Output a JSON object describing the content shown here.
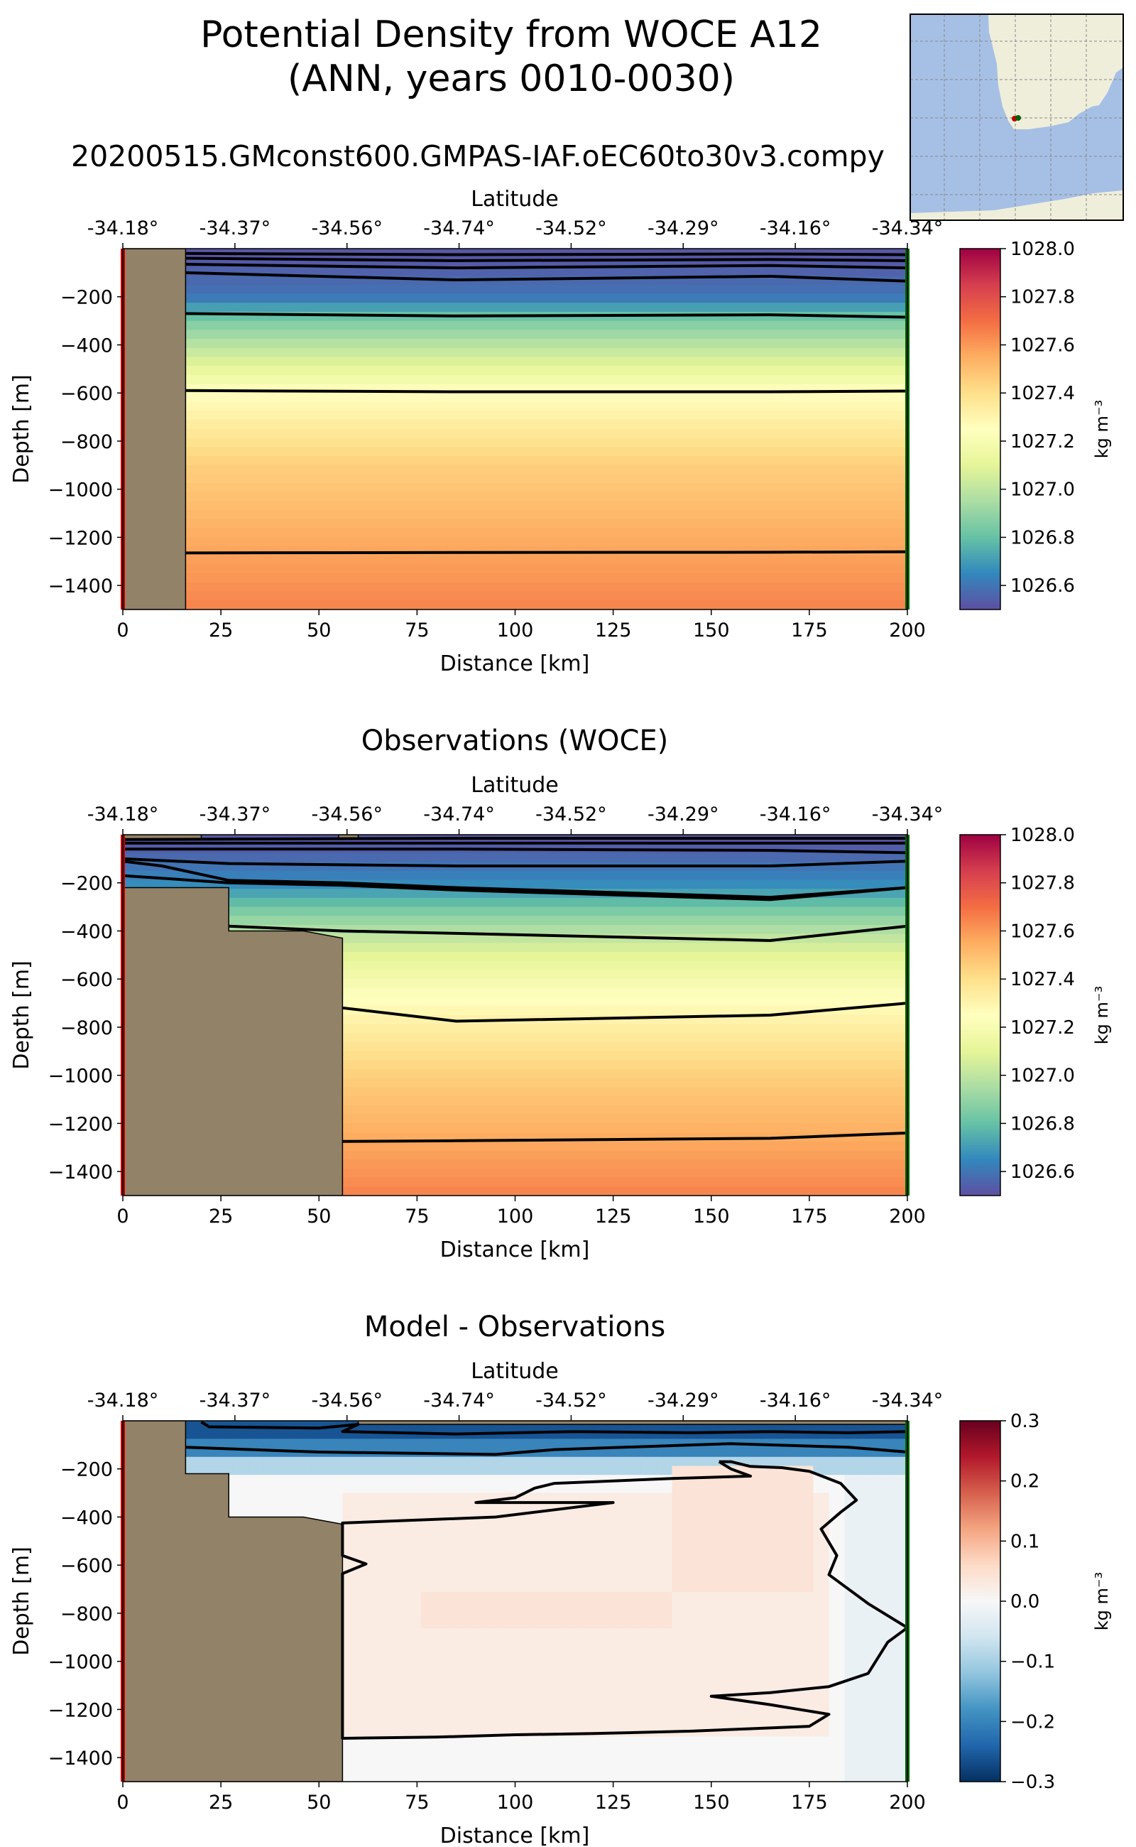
{
  "figure": {
    "title_line1": "Potential Density from WOCE A12",
    "title_line2": "(ANN, years 0010-0030)",
    "run_name": "20200515.GMconst600.GMPAS-IAF.oEC60to30v3.compy",
    "panel2_title": "Observations (WOCE)",
    "panel3_title": "Model - Observations"
  },
  "colors": {
    "land": "#928267",
    "map_ocean": "#a6c0e5",
    "map_land": "#efeedb",
    "start_marker": "#c00000",
    "end_marker": "#006400",
    "contour": "#000000"
  },
  "chart_data": [
    {
      "type": "heatmap",
      "title": "",
      "xlabel": "Distance [km]",
      "ylabel": "Depth [m]",
      "top_xlabel": "Latitude",
      "xlim": [
        0,
        200
      ],
      "ylim": [
        -1500,
        0
      ],
      "xticks": [
        0,
        25,
        50,
        75,
        100,
        125,
        150,
        175,
        200
      ],
      "yticks": [
        -200,
        -400,
        -600,
        -800,
        -1000,
        -1200,
        -1400
      ],
      "lat_ticks": [
        "-34.18°",
        "-34.37°",
        "-34.56°",
        "-34.74°",
        "-34.52°",
        "-34.29°",
        "-34.16°",
        "-34.34°"
      ],
      "colorbar": {
        "label": "kg m⁻³",
        "vmin": 1026.5,
        "vmax": 1028.0,
        "ticks": [
          1026.6,
          1026.8,
          1027.0,
          1027.2,
          1027.4,
          1027.6,
          1027.8,
          1028.0
        ],
        "colormap": "Spectral_r"
      },
      "profile": {
        "depth": [
          -30,
          -200,
          -300,
          -450,
          -600,
          -900,
          -1200,
          -1500
        ],
        "value": [
          1026.52,
          1026.6,
          1026.85,
          1027.05,
          1027.25,
          1027.45,
          1027.55,
          1027.65
        ]
      },
      "land": [
        [
          [
            0,
            0
          ],
          [
            16,
            0
          ],
          [
            16,
            -1500
          ],
          [
            0,
            -1500
          ]
        ]
      ],
      "contours": [
        [
          [
            16,
            -20
          ],
          [
            85,
            -25
          ],
          [
            165,
            -22
          ],
          [
            200,
            -25
          ]
        ],
        [
          [
            16,
            -40
          ],
          [
            85,
            -50
          ],
          [
            165,
            -45
          ],
          [
            200,
            -50
          ]
        ],
        [
          [
            16,
            -65
          ],
          [
            85,
            -80
          ],
          [
            165,
            -70
          ],
          [
            200,
            -80
          ]
        ],
        [
          [
            16,
            -100
          ],
          [
            85,
            -130
          ],
          [
            165,
            -115
          ],
          [
            200,
            -135
          ]
        ],
        [
          [
            16,
            -270
          ],
          [
            85,
            -280
          ],
          [
            165,
            -275
          ],
          [
            200,
            -285
          ]
        ],
        [
          [
            16,
            -590
          ],
          [
            85,
            -595
          ],
          [
            165,
            -595
          ],
          [
            200,
            -592
          ]
        ],
        [
          [
            16,
            -1265
          ],
          [
            85,
            -1263
          ],
          [
            165,
            -1262
          ],
          [
            200,
            -1260
          ]
        ]
      ]
    },
    {
      "type": "heatmap",
      "title": "Observations (WOCE)",
      "xlabel": "Distance [km]",
      "ylabel": "Depth [m]",
      "top_xlabel": "Latitude",
      "xlim": [
        0,
        200
      ],
      "ylim": [
        -1500,
        0
      ],
      "xticks": [
        0,
        25,
        50,
        75,
        100,
        125,
        150,
        175,
        200
      ],
      "yticks": [
        -200,
        -400,
        -600,
        -800,
        -1000,
        -1200,
        -1400
      ],
      "lat_ticks": [
        "-34.18°",
        "-34.37°",
        "-34.56°",
        "-34.74°",
        "-34.52°",
        "-34.29°",
        "-34.16°",
        "-34.34°"
      ],
      "colorbar": {
        "label": "kg m⁻³",
        "vmin": 1026.5,
        "vmax": 1028.0,
        "ticks": [
          1026.6,
          1026.8,
          1027.0,
          1027.2,
          1027.4,
          1027.6,
          1027.8,
          1028.0
        ],
        "colormap": "Spectral_r"
      },
      "profile": {
        "depth": [
          -30,
          -200,
          -350,
          -500,
          -750,
          -1000,
          -1250,
          -1500
        ],
        "value": [
          1026.52,
          1026.65,
          1026.9,
          1027.1,
          1027.3,
          1027.45,
          1027.55,
          1027.65
        ]
      },
      "land": [
        [
          [
            0,
            -220
          ],
          [
            27,
            -220
          ],
          [
            27,
            -400
          ],
          [
            46,
            -400
          ],
          [
            56,
            -430
          ],
          [
            56,
            -1500
          ],
          [
            0,
            -1500
          ]
        ],
        [
          [
            0,
            0
          ],
          [
            20,
            0
          ],
          [
            20,
            -20
          ],
          [
            0,
            -20
          ]
        ],
        [
          [
            55,
            0
          ],
          [
            60,
            0
          ],
          [
            60,
            -15
          ],
          [
            55,
            -15
          ]
        ]
      ],
      "contours": [
        [
          [
            0,
            -20
          ],
          [
            30,
            -18
          ],
          [
            85,
            -15
          ],
          [
            165,
            -15
          ],
          [
            200,
            -15
          ]
        ],
        [
          [
            0,
            -35
          ],
          [
            30,
            -35
          ],
          [
            85,
            -35
          ],
          [
            165,
            -35
          ],
          [
            200,
            -35
          ]
        ],
        [
          [
            0,
            -60
          ],
          [
            30,
            -60
          ],
          [
            85,
            -60
          ],
          [
            165,
            -65
          ],
          [
            200,
            -75
          ]
        ],
        [
          [
            0,
            -100
          ],
          [
            27,
            -120
          ],
          [
            85,
            -130
          ],
          [
            165,
            -130
          ],
          [
            200,
            -110
          ]
        ],
        [
          [
            0,
            -110
          ],
          [
            10,
            -130
          ],
          [
            27,
            -190
          ],
          [
            56,
            -200
          ],
          [
            85,
            -220
          ],
          [
            165,
            -260
          ],
          [
            200,
            -220
          ]
        ],
        [
          [
            0,
            -170
          ],
          [
            27,
            -200
          ],
          [
            56,
            -210
          ],
          [
            85,
            -230
          ],
          [
            165,
            -270
          ],
          [
            200,
            -220
          ]
        ],
        [
          [
            27,
            -380
          ],
          [
            56,
            -400
          ],
          [
            85,
            -410
          ],
          [
            165,
            -440
          ],
          [
            200,
            -380
          ]
        ],
        [
          [
            56,
            -720
          ],
          [
            85,
            -775
          ],
          [
            165,
            -750
          ],
          [
            200,
            -700
          ]
        ],
        [
          [
            56,
            -1275
          ],
          [
            85,
            -1272
          ],
          [
            165,
            -1262
          ],
          [
            200,
            -1240
          ]
        ]
      ]
    },
    {
      "type": "heatmap",
      "title": "Model - Observations",
      "xlabel": "Distance [km]",
      "ylabel": "Depth [m]",
      "top_xlabel": "Latitude",
      "xlim": [
        0,
        200
      ],
      "ylim": [
        -1500,
        0
      ],
      "xticks": [
        0,
        25,
        50,
        75,
        100,
        125,
        150,
        175,
        200
      ],
      "yticks": [
        -200,
        -400,
        -600,
        -800,
        -1000,
        -1200,
        -1400
      ],
      "lat_ticks": [
        "-34.18°",
        "-34.37°",
        "-34.56°",
        "-34.74°",
        "-34.52°",
        "-34.29°",
        "-34.16°",
        "-34.34°"
      ],
      "colorbar": {
        "label": "kg m⁻³",
        "vmin": -0.3,
        "vmax": 0.3,
        "ticks": [
          -0.3,
          -0.2,
          -0.1,
          0.0,
          0.1,
          0.2,
          0.3
        ],
        "colormap": "RdBu_r"
      },
      "anomaly": [
        {
          "x": [
            16,
            200
          ],
          "depth": [
            0,
            -80
          ],
          "value": -0.26
        },
        {
          "x": [
            16,
            200
          ],
          "depth": [
            -80,
            -150
          ],
          "value": -0.2
        },
        {
          "x": [
            16,
            200
          ],
          "depth": [
            -150,
            -210
          ],
          "value": -0.09
        },
        {
          "x": [
            56,
            180
          ],
          "depth": [
            -300,
            -1300
          ],
          "value": 0.025
        },
        {
          "x": [
            75,
            140
          ],
          "depth": [
            -700,
            -850
          ],
          "value": 0.04
        },
        {
          "x": [
            140,
            175
          ],
          "depth": [
            -200,
            -700
          ],
          "value": 0.04
        },
        {
          "x": [
            185,
            200
          ],
          "depth": [
            -210,
            -1500
          ],
          "value": -0.02
        }
      ],
      "land": [
        [
          [
            0,
            0
          ],
          [
            16,
            0
          ],
          [
            16,
            -220
          ],
          [
            27,
            -220
          ],
          [
            27,
            -400
          ],
          [
            46,
            -400
          ],
          [
            56,
            -430
          ],
          [
            56,
            -1500
          ],
          [
            0,
            -1500
          ]
        ],
        [
          [
            60,
            0
          ],
          [
            200,
            0
          ],
          [
            200,
            -15
          ],
          [
            60,
            -15
          ]
        ]
      ],
      "contours": [
        [
          [
            20,
            -5
          ],
          [
            22,
            -25
          ],
          [
            50,
            -30
          ],
          [
            60,
            -15
          ],
          [
            56,
            -45
          ],
          [
            85,
            -55
          ],
          [
            115,
            -45
          ],
          [
            145,
            -50
          ],
          [
            165,
            -45
          ],
          [
            185,
            -50
          ],
          [
            200,
            -45
          ]
        ],
        [
          [
            16,
            -110
          ],
          [
            50,
            -130
          ],
          [
            95,
            -140
          ],
          [
            110,
            -120
          ],
          [
            155,
            -95
          ],
          [
            185,
            -110
          ],
          [
            200,
            -130
          ]
        ],
        [
          [
            152,
            -170
          ],
          [
            155,
            -200
          ],
          [
            160,
            -230
          ],
          [
            140,
            -240
          ],
          [
            110,
            -260
          ],
          [
            105,
            -280
          ],
          [
            100,
            -320
          ],
          [
            90,
            -340
          ],
          [
            125,
            -340
          ],
          [
            110,
            -370
          ],
          [
            95,
            -400
          ],
          [
            56,
            -425
          ],
          [
            56,
            -560
          ],
          [
            62,
            -595
          ],
          [
            56,
            -635
          ],
          [
            56,
            -1320
          ],
          [
            80,
            -1315
          ],
          [
            100,
            -1305
          ],
          [
            120,
            -1300
          ],
          [
            145,
            -1290
          ],
          [
            160,
            -1280
          ],
          [
            175,
            -1270
          ],
          [
            180,
            -1220
          ],
          [
            165,
            -1180
          ],
          [
            150,
            -1145
          ],
          [
            165,
            -1130
          ],
          [
            180,
            -1105
          ],
          [
            190,
            -1050
          ],
          [
            195,
            -920
          ],
          [
            200,
            -860
          ],
          [
            190,
            -760
          ],
          [
            180,
            -640
          ],
          [
            182,
            -560
          ],
          [
            178,
            -450
          ],
          [
            183,
            -380
          ],
          [
            187,
            -330
          ],
          [
            183,
            -260
          ],
          [
            175,
            -210
          ],
          [
            168,
            -195
          ],
          [
            160,
            -190
          ],
          [
            155,
            -170
          ],
          [
            152,
            -170
          ]
        ]
      ]
    }
  ]
}
